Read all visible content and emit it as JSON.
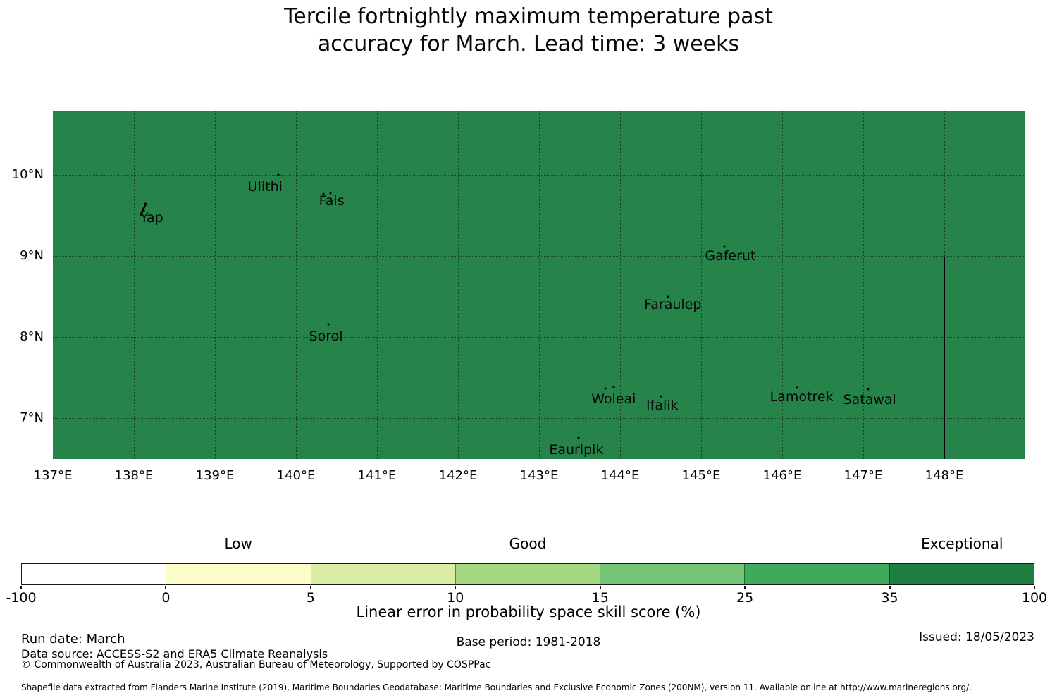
{
  "title": {
    "line1": "Tercile fortnightly maximum temperature past",
    "line2": "accuracy for March. Lead time: 3 weeks"
  },
  "chart_data": {
    "type": "heatmap",
    "subtype": "geographic-skill-map",
    "title": "Tercile fortnightly maximum temperature past accuracy for March. Lead time: 3 weeks",
    "extent": {
      "lon_min": 137,
      "lon_max": 149,
      "lat_min": 6.5,
      "lat_max": 10.79
    },
    "grid": "dotted",
    "field": {
      "description": "uniform skill score over whole region, in Exceptional range (35-100%)",
      "fill_color": "#26834A"
    },
    "x_ticks": [
      {
        "lon": 137,
        "label": "137°E"
      },
      {
        "lon": 138,
        "label": "138°E"
      },
      {
        "lon": 139,
        "label": "139°E"
      },
      {
        "lon": 140,
        "label": "140°E"
      },
      {
        "lon": 141,
        "label": "141°E"
      },
      {
        "lon": 142,
        "label": "142°E"
      },
      {
        "lon": 143,
        "label": "143°E"
      },
      {
        "lon": 144,
        "label": "144°E"
      },
      {
        "lon": 145,
        "label": "145°E"
      },
      {
        "lon": 146,
        "label": "146°E"
      },
      {
        "lon": 147,
        "label": "147°E"
      },
      {
        "lon": 148,
        "label": "148°E"
      }
    ],
    "y_ticks": [
      {
        "lat": 10,
        "label": "10°N"
      },
      {
        "lat": 9,
        "label": "9°N"
      },
      {
        "lat": 8,
        "label": "8°N"
      },
      {
        "lat": 7,
        "label": "7°N"
      }
    ],
    "islands": [
      {
        "name": "Yap",
        "lon": 138.22,
        "lat": 9.48,
        "marks": [
          [
            138.12,
            9.56
          ]
        ],
        "shape": "yap"
      },
      {
        "name": "Ulithi",
        "lon": 139.62,
        "lat": 9.86,
        "marks": [
          [
            139.78,
            10.01
          ]
        ]
      },
      {
        "name": "Fais",
        "lon": 140.44,
        "lat": 9.69,
        "marks": [
          [
            140.34,
            9.77
          ],
          [
            140.43,
            9.78
          ]
        ]
      },
      {
        "name": "Sorol",
        "lon": 140.37,
        "lat": 8.02,
        "marks": [
          [
            140.4,
            8.16
          ]
        ]
      },
      {
        "name": "Gaferut",
        "lon": 145.36,
        "lat": 9.01,
        "marks": [
          [
            145.29,
            9.12
          ]
        ]
      },
      {
        "name": "Faraulep",
        "lon": 144.65,
        "lat": 8.41,
        "marks": [
          [
            144.59,
            8.5
          ]
        ]
      },
      {
        "name": "Woleai",
        "lon": 143.92,
        "lat": 7.24,
        "marks": [
          [
            143.82,
            7.37
          ],
          [
            143.92,
            7.39
          ]
        ]
      },
      {
        "name": "Ifalik",
        "lon": 144.52,
        "lat": 7.16,
        "marks": [
          [
            144.5,
            7.28
          ]
        ]
      },
      {
        "name": "Lamotrek",
        "lon": 146.24,
        "lat": 7.27,
        "marks": [
          [
            146.18,
            7.38
          ]
        ]
      },
      {
        "name": "Satawal",
        "lon": 147.08,
        "lat": 7.23,
        "marks": [
          [
            147.06,
            7.36
          ]
        ]
      },
      {
        "name": "Eauripik",
        "lon": 143.46,
        "lat": 6.62,
        "marks": [
          [
            143.49,
            6.76
          ]
        ]
      }
    ],
    "eez_boundary": {
      "lon": 148,
      "lat_from": 9,
      "lat_to": 6.5
    },
    "colorbar": {
      "label": "Linear error in probability space skill score (%)",
      "boundaries": [
        -100,
        0,
        5,
        10,
        15,
        25,
        35,
        100
      ],
      "tick_labels": [
        "-100",
        "0",
        "5",
        "10",
        "15",
        "25",
        "35",
        "100"
      ],
      "colors": [
        "#ffffff",
        "#fafdc8",
        "#d9eda7",
        "#a3d880",
        "#74c476",
        "#3fa95c",
        "#1f7e42"
      ],
      "categories": [
        {
          "label": "Low",
          "segment_index": 1
        },
        {
          "label": "Good",
          "segment_index": 3
        },
        {
          "label": "Exceptional",
          "segment_index": 6
        }
      ]
    }
  },
  "footer": {
    "run_date": "Run date: March",
    "base_period": "Base period: 1981-2018",
    "issued": "Issued: 18/05/2023",
    "data_source": "Data source: ACCESS-S2 and ERA5 Climate Reanalysis",
    "copyright": "© Commonwealth of Australia 2023, Australian Bureau of Meteorology, Supported by COSPPac",
    "shapefile": "Shapefile data extracted from Flanders Marine Institute (2019), Maritime Boundaries Geodatabase: Maritime Boundaries and Exclusive Economic Zones (200NM), version 11. Available online at http://www.marineregions.org/."
  }
}
